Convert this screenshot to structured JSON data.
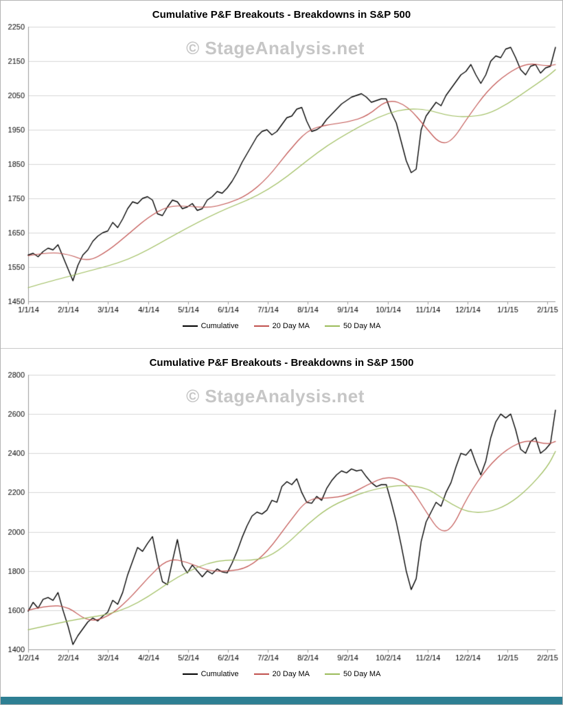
{
  "watermark": "© StageAnalysis.net",
  "colors": {
    "cumulative": "#000000",
    "ma20": "#c0504d",
    "ma50": "#9bbb59",
    "grid": "#d6d6d6",
    "axis": "#9a9a9a",
    "footer_bar": "#2e7f93"
  },
  "chart_data": [
    {
      "type": "line",
      "title": "Cumulative P&F Breakouts - Breakdowns in S&P 500",
      "xlabel": "",
      "ylabel": "",
      "ylim": [
        1450,
        2250
      ],
      "ytick_step": 100,
      "xlim": [
        0,
        13.2
      ],
      "grid": "horizontal",
      "legend_position": "bottom",
      "xtick_labels": [
        "1/1/14",
        "2/1/14",
        "3/1/14",
        "4/1/14",
        "5/1/14",
        "6/1/14",
        "7/1/14",
        "8/1/14",
        "9/1/14",
        "10/1/14",
        "11/1/14",
        "12/1/14",
        "1/1/15",
        "2/1/15"
      ],
      "legend": [
        {
          "label": "Cumulative"
        },
        {
          "label": "20 Day MA"
        },
        {
          "label": "50 Day MA"
        }
      ],
      "series": [
        {
          "name": "Cumulative",
          "color": "#000000",
          "width": 1.4,
          "values": [
            1585,
            1590,
            1580,
            1595,
            1605,
            1600,
            1615,
            1580,
            1545,
            1510,
            1555,
            1585,
            1600,
            1625,
            1640,
            1650,
            1655,
            1680,
            1665,
            1690,
            1720,
            1740,
            1735,
            1750,
            1755,
            1745,
            1705,
            1700,
            1725,
            1745,
            1740,
            1720,
            1725,
            1735,
            1715,
            1720,
            1745,
            1755,
            1770,
            1765,
            1780,
            1800,
            1825,
            1855,
            1880,
            1905,
            1930,
            1945,
            1950,
            1935,
            1945,
            1965,
            1985,
            1990,
            2010,
            2015,
            1975,
            1945,
            1950,
            1960,
            1980,
            1995,
            2010,
            2025,
            2035,
            2045,
            2050,
            2055,
            2045,
            2030,
            2035,
            2040,
            2040,
            2000,
            1970,
            1915,
            1860,
            1825,
            1835,
            1950,
            1990,
            2010,
            2030,
            2020,
            2050,
            2070,
            2090,
            2110,
            2120,
            2140,
            2110,
            2085,
            2110,
            2150,
            2165,
            2160,
            2185,
            2190,
            2160,
            2125,
            2110,
            2135,
            2140,
            2115,
            2130,
            2135,
            2190
          ]
        },
        {
          "name": "20 Day MA",
          "color": "#c0504d",
          "width": 1.2,
          "smooth": true,
          "x": [
            0,
            0.5,
            1,
            1.5,
            2,
            2.5,
            3,
            3.5,
            4,
            4.5,
            5,
            5.5,
            6,
            6.5,
            7,
            7.5,
            8,
            8.5,
            9,
            9.5,
            10,
            10.3,
            10.6,
            11,
            11.5,
            12,
            12.5,
            13,
            13.2
          ],
          "values": [
            1583,
            1593,
            1588,
            1565,
            1597,
            1645,
            1695,
            1728,
            1728,
            1722,
            1735,
            1760,
            1810,
            1885,
            1950,
            1965,
            1972,
            1990,
            2040,
            2020,
            1950,
            1910,
            1915,
            1985,
            2065,
            2115,
            2145,
            2135,
            2140
          ]
        },
        {
          "name": "50 Day MA",
          "color": "#9bbb59",
          "width": 1.2,
          "smooth": true,
          "x": [
            0,
            0.5,
            1,
            1.5,
            2,
            2.5,
            3,
            3.5,
            4,
            4.5,
            5,
            5.5,
            6,
            6.5,
            7,
            7.5,
            8,
            8.5,
            9,
            9.5,
            10,
            10.3,
            10.6,
            11,
            11.5,
            12,
            12.5,
            13,
            13.2
          ],
          "values": [
            1490,
            1507,
            1522,
            1538,
            1553,
            1572,
            1600,
            1633,
            1665,
            1695,
            1722,
            1745,
            1775,
            1815,
            1862,
            1905,
            1940,
            1972,
            1998,
            2012,
            2008,
            1998,
            1990,
            1987,
            1995,
            2025,
            2065,
            2105,
            2125
          ]
        }
      ]
    },
    {
      "type": "line",
      "title": "Cumulative P&F Breakouts - Breakdowns in S&P 1500",
      "xlabel": "",
      "ylabel": "",
      "ylim": [
        1400,
        2800
      ],
      "ytick_step": 200,
      "xlim": [
        0,
        13.2
      ],
      "grid": "horizontal",
      "legend_position": "bottom",
      "xtick_labels": [
        "1/2/14",
        "2/2/14",
        "3/2/14",
        "4/2/14",
        "5/2/14",
        "6/2/14",
        "7/2/14",
        "8/2/14",
        "9/2/14",
        "10/2/14",
        "11/2/14",
        "12/2/14",
        "1/2/15",
        "2/2/15"
      ],
      "legend": [
        {
          "label": "Cumulative"
        },
        {
          "label": "20 Day MA"
        },
        {
          "label": "50 Day MA"
        }
      ],
      "series": [
        {
          "name": "Cumulative",
          "color": "#000000",
          "width": 1.4,
          "values": [
            1595,
            1640,
            1610,
            1655,
            1665,
            1650,
            1690,
            1600,
            1520,
            1425,
            1470,
            1505,
            1540,
            1560,
            1545,
            1570,
            1590,
            1650,
            1630,
            1690,
            1780,
            1850,
            1920,
            1900,
            1940,
            1975,
            1850,
            1745,
            1730,
            1850,
            1960,
            1830,
            1790,
            1830,
            1800,
            1770,
            1800,
            1785,
            1810,
            1795,
            1790,
            1840,
            1900,
            1970,
            2030,
            2080,
            2100,
            2090,
            2110,
            2160,
            2150,
            2230,
            2255,
            2240,
            2270,
            2200,
            2150,
            2145,
            2180,
            2160,
            2220,
            2260,
            2290,
            2310,
            2300,
            2320,
            2310,
            2315,
            2280,
            2250,
            2230,
            2240,
            2240,
            2150,
            2050,
            1930,
            1800,
            1705,
            1760,
            1950,
            2050,
            2100,
            2150,
            2130,
            2200,
            2250,
            2330,
            2400,
            2390,
            2420,
            2350,
            2290,
            2360,
            2480,
            2560,
            2600,
            2580,
            2600,
            2520,
            2420,
            2400,
            2460,
            2480,
            2400,
            2420,
            2450,
            2620
          ]
        },
        {
          "name": "20 Day MA",
          "color": "#c0504d",
          "width": 1.2,
          "smooth": true,
          "x": [
            0,
            0.5,
            1,
            1.5,
            2,
            2.5,
            3,
            3.5,
            4,
            4.5,
            5,
            5.5,
            6,
            6.5,
            7,
            7.5,
            8,
            8.5,
            9,
            9.5,
            10,
            10.3,
            10.6,
            11,
            11.5,
            12,
            12.5,
            13,
            13.2
          ],
          "values": [
            1600,
            1625,
            1618,
            1540,
            1565,
            1650,
            1765,
            1865,
            1845,
            1800,
            1798,
            1815,
            1900,
            2040,
            2170,
            2170,
            2185,
            2240,
            2285,
            2250,
            2090,
            2000,
            2010,
            2180,
            2330,
            2425,
            2470,
            2445,
            2460
          ]
        },
        {
          "name": "50 Day MA",
          "color": "#9bbb59",
          "width": 1.2,
          "smooth": true,
          "x": [
            0,
            0.5,
            1,
            1.5,
            2,
            2.5,
            3,
            3.5,
            4,
            4.5,
            5,
            5.5,
            6,
            6.5,
            7,
            7.5,
            8,
            8.5,
            9,
            9.5,
            10,
            10.3,
            10.6,
            11,
            11.5,
            12,
            12.5,
            13,
            13.2
          ],
          "values": [
            1500,
            1522,
            1545,
            1562,
            1578,
            1612,
            1668,
            1738,
            1798,
            1840,
            1858,
            1852,
            1868,
            1940,
            2040,
            2120,
            2170,
            2208,
            2230,
            2238,
            2220,
            2180,
            2140,
            2100,
            2098,
            2135,
            2215,
            2330,
            2410
          ]
        }
      ]
    }
  ]
}
